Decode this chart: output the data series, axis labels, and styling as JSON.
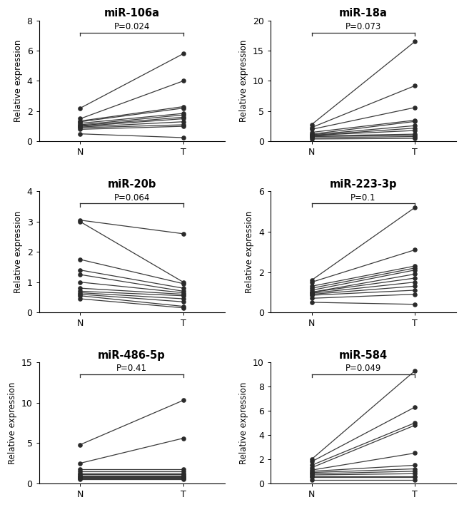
{
  "panels": [
    {
      "title": "miR-106a",
      "pvalue": "P=0.024",
      "ylim": [
        0,
        8
      ],
      "yticks": [
        0,
        2,
        4,
        6,
        8
      ],
      "pairs_N": [
        2.2,
        1.5,
        1.35,
        1.3,
        1.2,
        1.1,
        1.05,
        1.0,
        0.95,
        0.9,
        0.8,
        0.5
      ],
      "pairs_T": [
        5.8,
        4.0,
        2.3,
        2.2,
        1.85,
        1.75,
        1.6,
        1.5,
        1.3,
        1.1,
        1.0,
        0.25
      ]
    },
    {
      "title": "miR-18a",
      "pvalue": "P=0.073",
      "ylim": [
        0,
        20
      ],
      "yticks": [
        0,
        5,
        10,
        15,
        20
      ],
      "pairs_N": [
        2.8,
        2.3,
        2.0,
        1.5,
        1.2,
        1.1,
        1.0,
        1.0,
        0.9,
        0.8,
        0.6,
        0.4
      ],
      "pairs_T": [
        16.5,
        9.2,
        5.6,
        3.5,
        3.3,
        2.6,
        2.2,
        1.8,
        1.2,
        1.0,
        0.8,
        0.5
      ]
    },
    {
      "title": "miR-20b",
      "pvalue": "P=0.064",
      "ylim": [
        0,
        4
      ],
      "yticks": [
        0,
        1,
        2,
        3,
        4
      ],
      "pairs_N": [
        3.05,
        3.0,
        1.75,
        1.4,
        1.25,
        1.0,
        0.8,
        0.7,
        0.65,
        0.6,
        0.55,
        0.45
      ],
      "pairs_T": [
        2.6,
        1.0,
        0.95,
        0.8,
        0.7,
        0.65,
        0.6,
        0.55,
        0.45,
        0.35,
        0.2,
        0.15
      ]
    },
    {
      "title": "miR-223-3p",
      "pvalue": "P=0.1",
      "ylim": [
        0,
        6
      ],
      "yticks": [
        0,
        2,
        4,
        6
      ],
      "pairs_N": [
        1.6,
        1.5,
        1.3,
        1.2,
        1.1,
        1.0,
        1.0,
        0.95,
        0.9,
        0.85,
        0.7,
        0.5
      ],
      "pairs_T": [
        5.2,
        3.1,
        2.3,
        2.2,
        2.1,
        1.9,
        1.7,
        1.5,
        1.3,
        1.1,
        0.9,
        0.4
      ]
    },
    {
      "title": "miR-486-5p",
      "pvalue": "P=0.41",
      "ylim": [
        0,
        15
      ],
      "yticks": [
        0,
        5,
        10,
        15
      ],
      "pairs_N": [
        4.8,
        2.5,
        1.8,
        1.5,
        1.2,
        1.1,
        1.0,
        0.9,
        0.8,
        0.7,
        0.6,
        0.5
      ],
      "pairs_T": [
        10.3,
        5.6,
        1.8,
        1.5,
        1.2,
        1.1,
        1.0,
        0.9,
        0.8,
        0.7,
        0.6,
        0.5
      ]
    },
    {
      "title": "miR-584",
      "pvalue": "P=0.049",
      "ylim": [
        0,
        10
      ],
      "yticks": [
        0,
        2,
        4,
        6,
        8,
        10
      ],
      "pairs_N": [
        2.0,
        1.8,
        1.5,
        1.3,
        1.1,
        1.0,
        0.9,
        0.8,
        0.7,
        0.6,
        0.5,
        0.3
      ],
      "pairs_T": [
        9.3,
        6.3,
        5.0,
        4.8,
        2.5,
        1.5,
        1.2,
        1.0,
        0.8,
        0.6,
        0.5,
        0.3
      ]
    }
  ],
  "ylabel": "Relative expression",
  "xtick_labels": [
    "N",
    "T"
  ],
  "line_color": "#3a3a3a",
  "dot_color": "#2a2a2a",
  "dot_size": 14,
  "line_width": 0.9,
  "title_fontsize": 10.5,
  "label_fontsize": 8.5,
  "tick_fontsize": 9,
  "bracket_color": "#2a2a2a",
  "bracket_lw": 0.9
}
